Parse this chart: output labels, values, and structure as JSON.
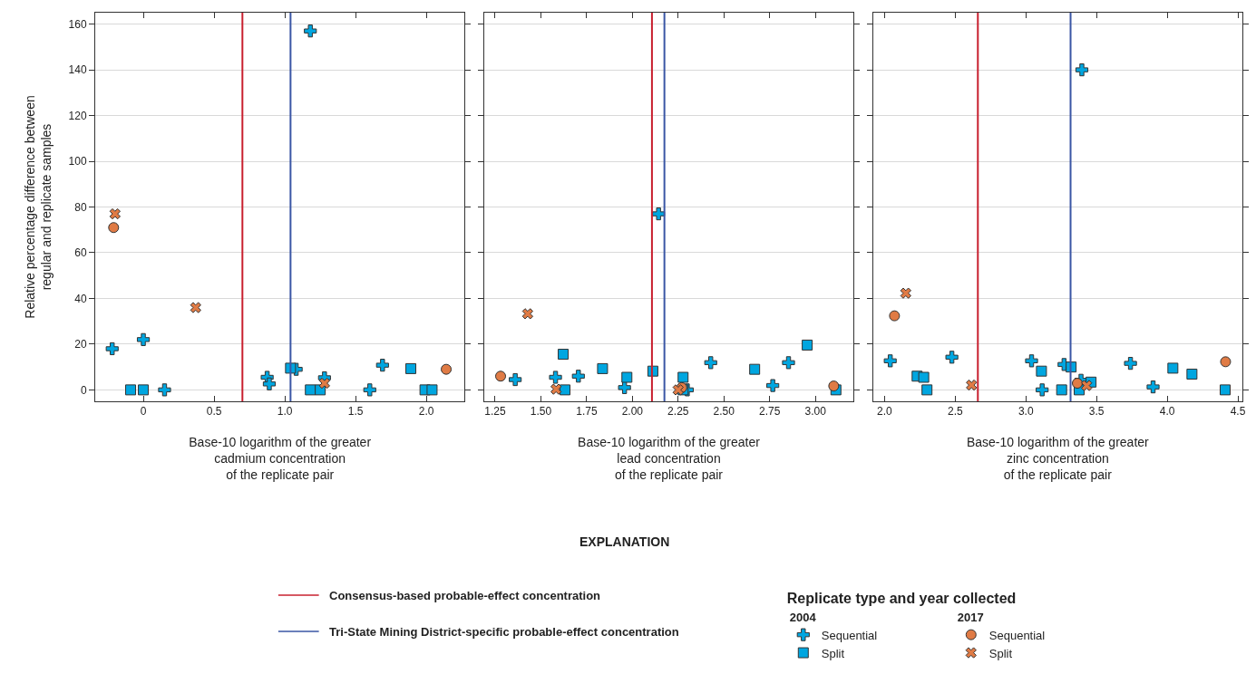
{
  "chart_data": [
    {
      "type": "scatter",
      "ylabel": "Relative percentage difference between\nregular and replicate samples",
      "xlabel": "Base-10 logarithm of the greater\ncadmium concentration\nof the replicate pair",
      "xlim": [
        -0.34,
        2.27
      ],
      "xticks": [
        0,
        {
          "value": 0.5,
          "label": "0.5"
        },
        {
          "value": 1.0,
          "label": "1.0"
        },
        {
          "value": 1.5,
          "label": "1.5"
        },
        {
          "value": 2.0,
          "label": "2.0"
        }
      ],
      "ylim": [
        -5,
        165
      ],
      "yticks": [
        0,
        20,
        40,
        60,
        80,
        100,
        120,
        140,
        160
      ],
      "grid": "y",
      "legend": "bottom right",
      "legend_title": "Replicate type and year collected",
      "annotations": [
        "EXPLANATION",
        "2004",
        "2017"
      ],
      "ref_lines": [
        {
          "axis": "x",
          "value": 0.7,
          "color": "#c8202f",
          "label": "Consensus-based probable-effect concentration"
        },
        {
          "axis": "x",
          "value": 1.04,
          "color": "#3a56a5",
          "label": "Tri-State Mining District-specific probable-effect concentration"
        }
      ],
      "series": [
        {
          "name": "Sequential",
          "color": "#00a6e0",
          "marker": "cross",
          "x": [
            1.18,
            -0.22,
            0,
            0.15,
            0.875,
            0.89,
            1.08,
            1.28,
            1.6,
            1.69
          ],
          "values": [
            157,
            18,
            22,
            0,
            5.5,
            2.6,
            9,
            5.3,
            0,
            10.8
          ]
        },
        {
          "name": "Split",
          "color": "#00a6e0",
          "marker": "square",
          "x": [
            -0.09,
            0,
            1.04,
            1.18,
            1.25,
            1.89,
            1.99,
            2.04
          ],
          "values": [
            0,
            0,
            9.5,
            0,
            0,
            9.3,
            0,
            0
          ]
        },
        {
          "name": "Sequential",
          "color": "#e07b45",
          "marker": "circle",
          "x": [
            -0.21,
            2.14
          ],
          "values": [
            71,
            9
          ]
        },
        {
          "name": "Split",
          "color": "#e07b45",
          "marker": "x",
          "x": [
            -0.2,
            0.37,
            1.28
          ],
          "values": [
            77,
            36,
            2.9
          ]
        }
      ]
    },
    {
      "type": "scatter",
      "xlabel": "Base-10 logarithm of the greater\nlead concentration\nof the replicate pair",
      "xlim": [
        1.19,
        3.208
      ],
      "xticks": [
        {
          "value": 1.25,
          "label": "1.25"
        },
        {
          "value": 1.5,
          "label": "1.50"
        },
        {
          "value": 1.75,
          "label": "1.75"
        },
        {
          "value": 2.0,
          "label": "2.00"
        },
        {
          "value": 2.25,
          "label": "2.25"
        },
        {
          "value": 2.5,
          "label": "2.50"
        },
        {
          "value": 2.75,
          "label": "2.75"
        },
        {
          "value": 3.0,
          "label": "3.00"
        }
      ],
      "ylim": [
        -5,
        165
      ],
      "yticks": [
        {
          "value": 0,
          "label": null
        },
        {
          "value": 20,
          "label": null
        },
        {
          "value": 40,
          "label": null
        },
        {
          "value": 60,
          "label": null
        },
        {
          "value": 80,
          "label": null
        },
        {
          "value": 100,
          "label": null
        },
        {
          "value": 120,
          "label": null
        },
        {
          "value": 140,
          "label": null
        },
        {
          "value": 160,
          "label": null
        }
      ],
      "tick_labels": "x",
      "grid": "y",
      "ref_lines": [
        {
          "axis": "x",
          "value": 2.107,
          "color": "#c8202f"
        },
        {
          "axis": "x",
          "value": 2.175,
          "color": "#3a56a5"
        }
      ],
      "series": [
        {
          "color": "#00a6e0",
          "marker": "cross",
          "x": [
            1.36,
            1.58,
            1.705,
            1.957,
            2.143,
            2.3,
            2.428,
            2.767,
            2.853
          ],
          "values": [
            4.5,
            5.5,
            6,
            1,
            77,
            0,
            11.9,
            1.9,
            11.9
          ]
        },
        {
          "color": "#00a6e0",
          "marker": "square",
          "x": [
            1.622,
            1.632,
            1.837,
            1.97,
            2.112,
            2.277,
            2.277,
            2.668,
            2.955,
            3.112
          ],
          "values": [
            15.6,
            0,
            9.3,
            5.5,
            8.2,
            5.5,
            0,
            9,
            19.6,
            0
          ]
        },
        {
          "color": "#e07b45",
          "marker": "circle",
          "x": [
            1.28,
            2.27,
            3.1
          ],
          "values": [
            6,
            1,
            1.7
          ]
        },
        {
          "color": "#e07b45",
          "marker": "x",
          "x": [
            1.428,
            1.583,
            2.25
          ],
          "values": [
            33.3,
            0.3,
            0
          ]
        }
      ]
    },
    {
      "type": "scatter",
      "xlabel": "Base-10 logarithm of the greater\nzinc concentration\nof the replicate pair",
      "xlim": [
        1.918,
        4.532
      ],
      "xticks": [
        {
          "value": 2.0,
          "label": "2.0"
        },
        {
          "value": 2.5,
          "label": "2.5"
        },
        {
          "value": 3.0,
          "label": "3.0"
        },
        {
          "value": 3.5,
          "label": "3.5"
        },
        {
          "value": 4.0,
          "label": "4.0"
        },
        {
          "value": 4.5,
          "label": "4.5"
        }
      ],
      "ylim": [
        -5,
        165
      ],
      "yticks": [
        {
          "value": 0,
          "label": null
        },
        {
          "value": 20,
          "label": null
        },
        {
          "value": 40,
          "label": null
        },
        {
          "value": 60,
          "label": null
        },
        {
          "value": 80,
          "label": null
        },
        {
          "value": 100,
          "label": null
        },
        {
          "value": 120,
          "label": null
        },
        {
          "value": 140,
          "label": null
        },
        {
          "value": 160,
          "label": null
        }
      ],
      "tick_labels": "x",
      "grid": "y",
      "ref_lines": [
        {
          "axis": "x",
          "value": 2.66,
          "color": "#c8202f"
        },
        {
          "axis": "x",
          "value": 3.316,
          "color": "#3a56a5"
        }
      ],
      "series": [
        {
          "color": "#00a6e0",
          "marker": "cross",
          "x": [
            2.04,
            2.476,
            3.04,
            3.115,
            3.27,
            3.396,
            3.39,
            3.74,
            3.9
          ],
          "values": [
            12.7,
            14.3,
            12.7,
            0,
            11.1,
            140,
            4.2,
            11.6,
            1.3
          ]
        },
        {
          "color": "#00a6e0",
          "marker": "square",
          "x": [
            2.23,
            2.277,
            2.3,
            3.11,
            3.253,
            3.32,
            3.377,
            3.461,
            4.04,
            4.175,
            4.41
          ],
          "values": [
            6,
            5.5,
            0,
            8.2,
            0,
            10,
            0,
            3.4,
            9.5,
            6.9,
            0
          ]
        },
        {
          "color": "#e07b45",
          "marker": "circle",
          "x": [
            2.07,
            3.364,
            4.413
          ],
          "values": [
            32.4,
            2.9,
            12.3
          ]
        },
        {
          "color": "#e07b45",
          "marker": "x",
          "x": [
            2.15,
            2.615,
            3.43
          ],
          "values": [
            42.3,
            2.1,
            1.9
          ]
        }
      ]
    }
  ]
}
